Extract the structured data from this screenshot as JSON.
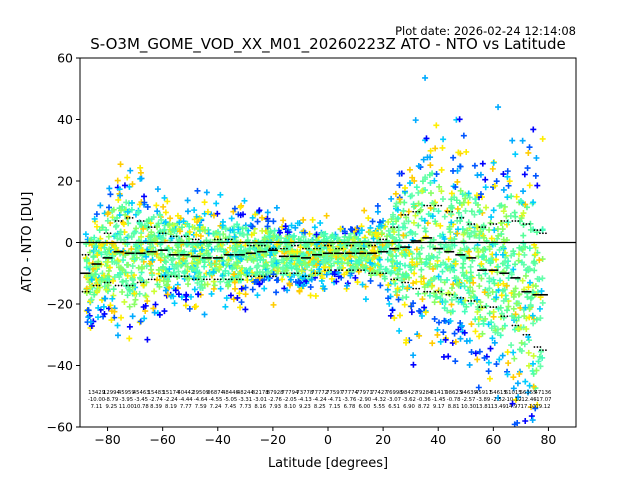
{
  "plot_date": "Plot date: 2026-02-24 12:14:08",
  "chart_data": {
    "type": "scatter",
    "title": "S-O3M_GOME_VOD_XX_M01_20260223Z ATO - NTO vs Latitude",
    "xlabel": "Latitude [degrees]",
    "ylabel": "ATO - NTO [DU]",
    "xlim": [
      -90,
      90
    ],
    "ylim": [
      -60,
      60
    ],
    "xticks": [
      -80,
      -60,
      -40,
      -20,
      0,
      20,
      40,
      60,
      80
    ],
    "yticks": [
      -60,
      -40,
      -20,
      0,
      20,
      40,
      60
    ],
    "reference_line_y": 0,
    "grid": false,
    "colors": {
      "scatter_palette": [
        "#55ff99",
        "#66ffaa",
        "#44ffbb",
        "#88ff66",
        "#ccff33",
        "#ffee00",
        "#ffcc00",
        "#00ccff",
        "#00aaff",
        "#0055ff",
        "#0000ff"
      ],
      "mean_line": "#000000",
      "zero_line": "#000000"
    },
    "lat_bins": [
      -88,
      -84,
      -80,
      -76,
      -72,
      -68,
      -64,
      -60,
      -56,
      -52,
      -48,
      -44,
      -40,
      -36,
      -32,
      -28,
      -24,
      -20,
      -16,
      -12,
      -8,
      -4,
      0,
      4,
      8,
      12,
      16,
      20,
      24,
      28,
      32,
      36,
      40,
      44,
      48,
      52,
      56,
      60,
      64,
      68,
      72,
      76,
      78
    ],
    "mean": [
      -10,
      -7,
      -5,
      -3,
      -3.5,
      -3.5,
      -3,
      -2.5,
      -4,
      -4,
      -4.5,
      -5,
      -5,
      -4,
      -4,
      -3.5,
      -3,
      -2.5,
      -4.5,
      -4.5,
      -5,
      -4,
      -3.5,
      -3.5,
      -3.5,
      -3.5,
      -3.5,
      -3,
      -2,
      -1.5,
      0.5,
      1.5,
      -2,
      -3,
      -4,
      -5,
      -9,
      -9,
      -10,
      -11.5,
      -16,
      -17,
      -17
    ],
    "upper": [
      -4,
      0,
      3,
      7,
      8,
      7,
      5,
      3,
      2,
      2,
      1,
      0,
      1,
      1,
      0,
      -1,
      -1,
      -2,
      -2,
      -1,
      -2,
      -2,
      -1,
      -2,
      -1,
      -2,
      -1,
      1,
      5,
      9,
      10,
      12,
      12,
      10,
      8,
      6,
      5,
      6,
      7,
      7,
      6,
      4,
      3
    ],
    "lower": [
      -16,
      -14,
      -13,
      -14,
      -14,
      -13,
      -12,
      -11,
      -11,
      -11,
      -12,
      -12,
      -12,
      -12,
      -12,
      -11,
      -11,
      -11,
      -10,
      -10,
      -11,
      -10,
      -9,
      -9,
      -9,
      -9,
      -10,
      -10,
      -12,
      -13,
      -15,
      -16,
      -16,
      -17,
      -18,
      -19,
      -21,
      -21,
      -24,
      -27,
      -30,
      -34,
      -35
    ],
    "n_points": [
      "13429",
      "12994",
      "45959",
      "45463",
      "15483",
      "15174",
      "40442",
      "29509",
      "06874",
      "48446",
      "48244",
      "82178",
      "87928",
      "77794",
      "73778",
      "77772",
      "77597",
      "77774",
      "77971",
      "77427",
      "76998",
      "98427",
      "79284",
      "81417",
      "98623",
      "94639",
      "45911",
      "54615",
      "61015",
      "56355",
      "47136"
    ],
    "mean_row": [
      "-10.00",
      "-8.79",
      "-3.95",
      "-3.45",
      "-2.74",
      "-2.24",
      "-4.44",
      "-4.64",
      "-4.55",
      "-5.05",
      "-3.31",
      "-3.01",
      "-2.76",
      "-2.05",
      "-4.13",
      "-4.24",
      "-4.71",
      "-3.76",
      "-2.90",
      "-4.32",
      "-3.07",
      "-3.62",
      "-0.36",
      "-1.45",
      "-0.78",
      "-2.57",
      "-3.89",
      "-2.52",
      "-10.12",
      "-12.46",
      "-17.07"
    ],
    "std_row": [
      "7.11",
      "9.25",
      "11.00",
      "10.78",
      "8.39",
      "8.19",
      "7.77",
      "7.59",
      "7.24",
      "7.45",
      "7.73",
      "8.16",
      "7.93",
      "8.10",
      "9.23",
      "8.25",
      "7.15",
      "6.78",
      "6.00",
      "5.55",
      "6.51",
      "6.90",
      "8.72",
      "9.17",
      "8.81",
      "10.30",
      "13.81",
      "13.49",
      "14.97",
      "17.10",
      "19.12"
    ]
  }
}
